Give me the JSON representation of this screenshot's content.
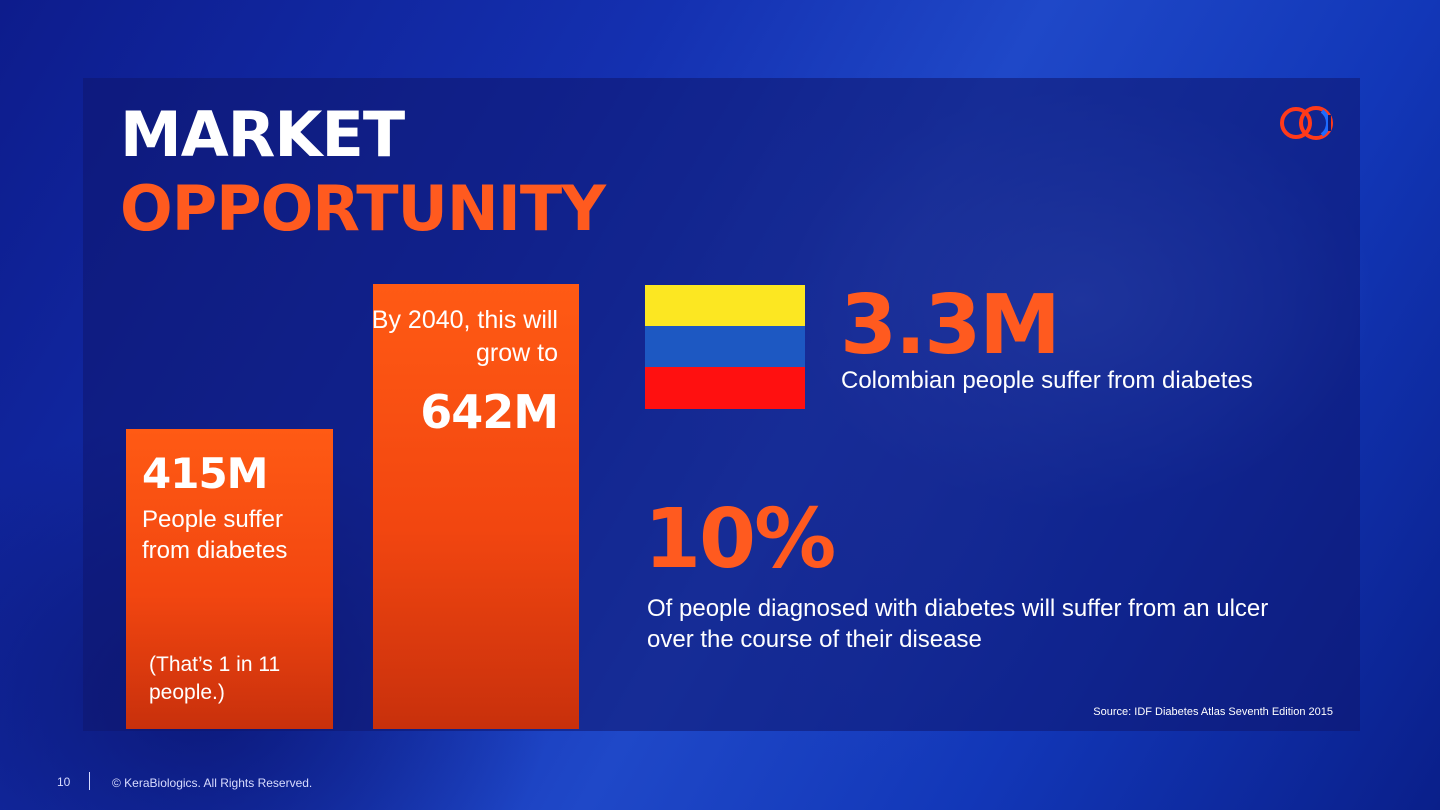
{
  "title": {
    "line1": "MARKET",
    "line2": "OPPORTUNITY"
  },
  "colors": {
    "accent": "#ff5a1f",
    "bar": "#f24610",
    "white": "#ffffff"
  },
  "icons": {
    "logo": "kerabiologics-rings-logo",
    "flag": "colombia-flag"
  },
  "stats": {
    "current": {
      "value": "415M",
      "label": "People suffer from diabetes",
      "note": "(That’s 1 in 11 people.)"
    },
    "future": {
      "intro": "By 2040, this will grow to",
      "value": "642M"
    },
    "colombia": {
      "value": "3.3M",
      "label": "Colombian people suffer from diabetes"
    },
    "ulcer": {
      "value": "10%",
      "label": "Of people diagnosed with diabetes will suffer from an ulcer over the course of their disease"
    }
  },
  "source": "Source: IDF Diabetes Atlas Seventh Edition 2015",
  "footer": {
    "page": "10",
    "copyright": "© KeraBiologics. All Rights Reserved."
  }
}
